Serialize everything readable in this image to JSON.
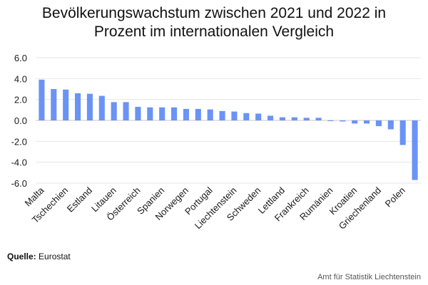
{
  "title_line1": "Bevölkerungswachstum zwischen 2021 und 2022 in",
  "title_line2": "Prozent im internationalen Vergleich",
  "source_label": "Quelle:",
  "source_value": "Eurostat",
  "credit": "Amt für Statistik Liechtenstein",
  "chart_data": {
    "type": "bar",
    "title": "Bevölkerungswachstum zwischen 2021 und 2022 in Prozent im internationalen Vergleich",
    "xlabel": "",
    "ylabel": "",
    "ylim": [
      -6.0,
      6.0
    ],
    "yticks": [
      "6.0",
      "4.0",
      "2.0",
      "0.0",
      "-2.0",
      "-4.0",
      "-6.0"
    ],
    "ytick_values": [
      6,
      4,
      2,
      0,
      -2,
      -4,
      -6
    ],
    "grid": true,
    "bar_color": "#6a93f5",
    "categories": [
      "Malta",
      "",
      "Tschechien",
      "",
      "Estland",
      "",
      "Litauen",
      "",
      "Österreich",
      "",
      "Spanien",
      "",
      "Norwegen",
      "",
      "Portugal",
      "",
      "Liechtenstein",
      "",
      "Schweden",
      "",
      "Lettland",
      "",
      "Frankreich",
      "",
      "Rumänien",
      "",
      "Kroatien",
      "",
      "Griechenland",
      "",
      "Polen",
      ""
    ],
    "values": [
      3.9,
      3.0,
      2.95,
      2.6,
      2.55,
      2.35,
      1.75,
      1.75,
      1.3,
      1.25,
      1.25,
      1.25,
      1.1,
      1.1,
      1.05,
      0.9,
      0.85,
      0.7,
      0.65,
      0.45,
      0.3,
      0.3,
      0.25,
      0.25,
      -0.05,
      -0.1,
      -0.3,
      -0.3,
      -0.55,
      -0.85,
      -2.35,
      -5.7
    ]
  }
}
